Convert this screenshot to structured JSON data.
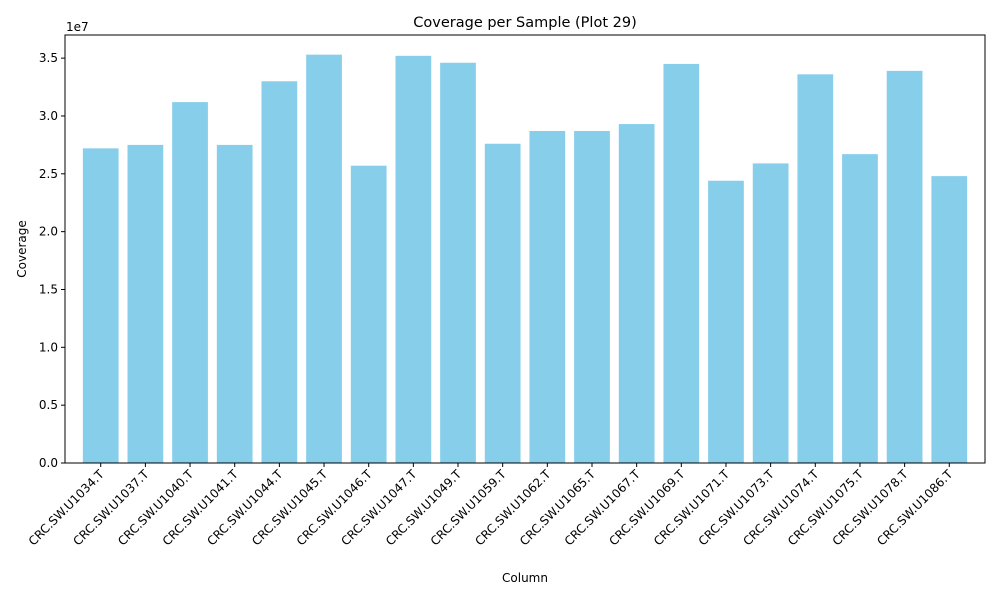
{
  "chart_data": {
    "type": "bar",
    "title": "Coverage per Sample (Plot 29)",
    "xlabel": "Column",
    "ylabel": "Coverage",
    "y_offset_label": "1e7",
    "categories": [
      "CRC.SW.U1034.T",
      "CRC.SW.U1037.T",
      "CRC.SW.U1040.T",
      "CRC.SW.U1041.T",
      "CRC.SW.U1044.T",
      "CRC.SW.U1045.T",
      "CRC.SW.U1046.T",
      "CRC.SW.U1047.T",
      "CRC.SW.U1049.T",
      "CRC.SW.U1059.T",
      "CRC.SW.U1062.T",
      "CRC.SW.U1065.T",
      "CRC.SW.U1067.T",
      "CRC.SW.U1069.T",
      "CRC.SW.U1071.T",
      "CRC.SW.U1073.T",
      "CRC.SW.U1074.T",
      "CRC.SW.U1075.T",
      "CRC.SW.U1078.T",
      "CRC.SW.U1086.T"
    ],
    "values": [
      27200000,
      27500000,
      31200000,
      27500000,
      33000000,
      35300000,
      25700000,
      35200000,
      34600000,
      27600000,
      28700000,
      28700000,
      29300000,
      34500000,
      24400000,
      25900000,
      33600000,
      26700000,
      33900000,
      24800000
    ],
    "ylim": [
      0,
      37000000
    ],
    "yticks": [
      0,
      5000000,
      10000000,
      15000000,
      20000000,
      25000000,
      30000000,
      35000000
    ],
    "ytick_labels": [
      "0.0",
      "0.5",
      "1.0",
      "1.5",
      "2.0",
      "2.5",
      "3.0",
      "3.5"
    ],
    "bar_color": "#87ceeb",
    "grid": false,
    "legend": "none"
  }
}
